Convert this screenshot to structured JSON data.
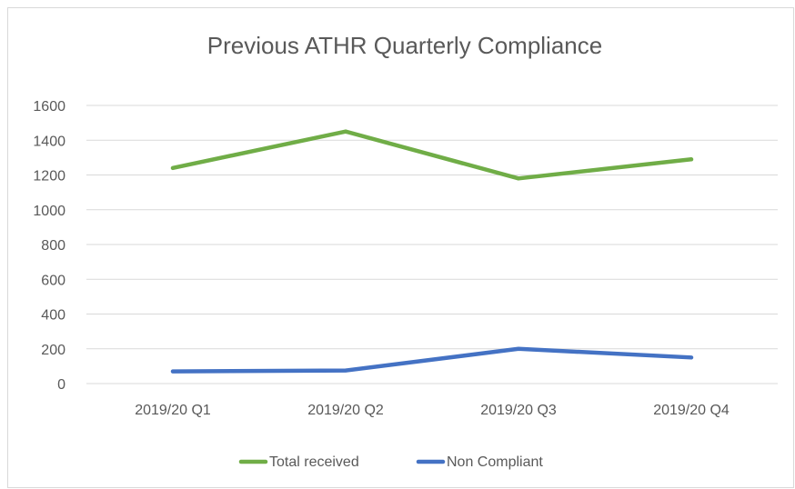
{
  "chart_data": {
    "type": "line",
    "title": "Previous ATHR Quarterly Compliance",
    "categories": [
      "2019/20 Q1",
      "2019/20 Q2",
      "2019/20 Q3",
      "2019/20 Q4"
    ],
    "series": [
      {
        "name": "Total received",
        "color": "#70ad47",
        "values": [
          1240,
          1450,
          1180,
          1290
        ]
      },
      {
        "name": "Non Compliant",
        "color": "#4472c4",
        "values": [
          70,
          75,
          200,
          150
        ]
      }
    ],
    "ylim": [
      0,
      1600
    ],
    "yticks": [
      0,
      200,
      400,
      600,
      800,
      1000,
      1200,
      1400,
      1600
    ],
    "grid": true,
    "legend": "bottom"
  }
}
